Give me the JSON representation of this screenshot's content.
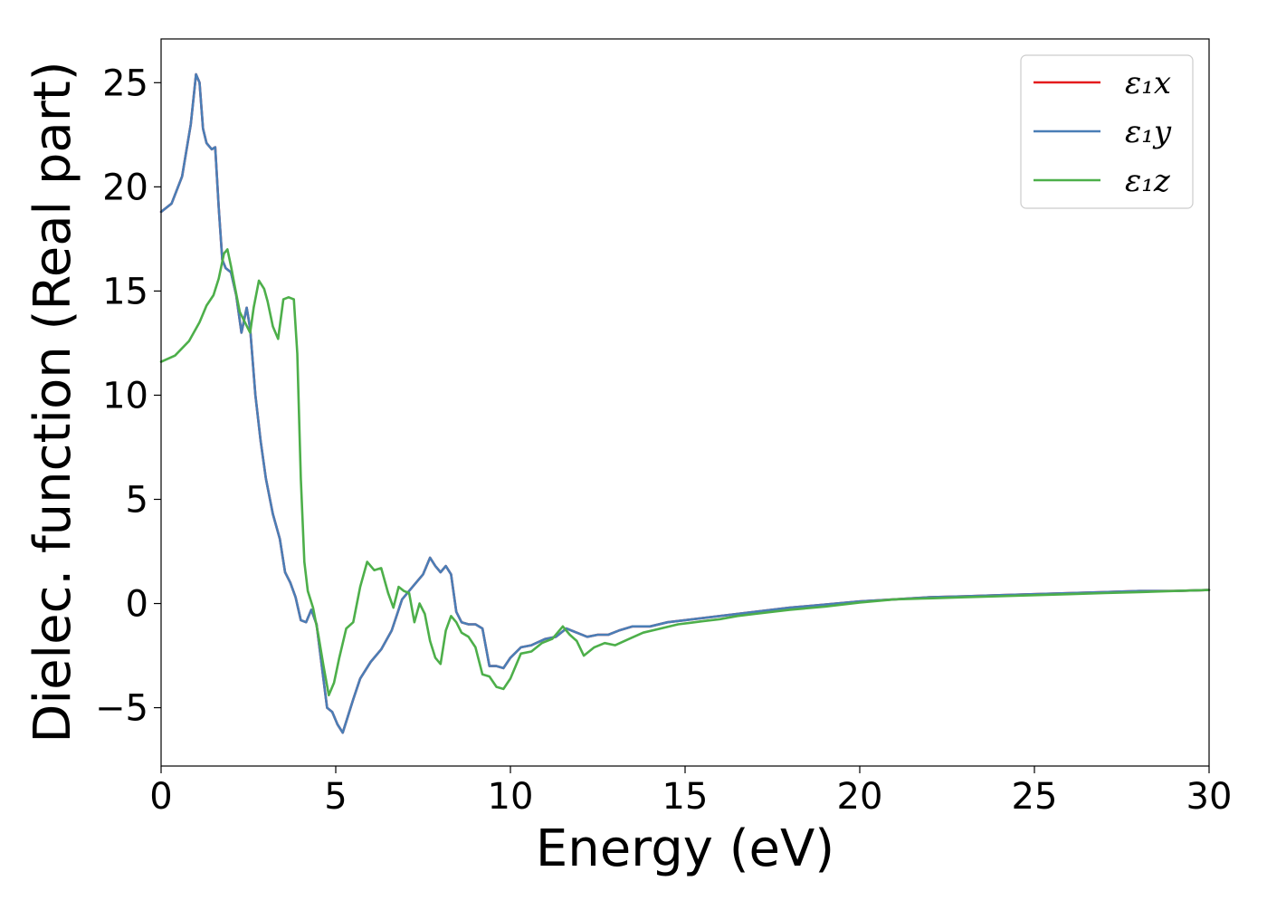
{
  "chart_data": {
    "type": "line",
    "title": "",
    "xlabel": "Energy (eV)",
    "ylabel": "Dielec. function (Real part)",
    "xlim": [
      0,
      30
    ],
    "ylim": [
      -7.8,
      27.1
    ],
    "xticks": [
      0,
      5,
      10,
      15,
      20,
      25,
      30
    ],
    "yticks": [
      -5,
      0,
      5,
      10,
      15,
      20,
      25
    ],
    "xtick_labels": [
      "0",
      "5",
      "10",
      "15",
      "20",
      "25",
      "30"
    ],
    "ytick_labels": [
      "−5",
      "0",
      "5",
      "10",
      "15",
      "20",
      "25"
    ],
    "grid": false,
    "legend_position": "top-right",
    "series": [
      {
        "name": "ε₁x",
        "color": "#e41a1c",
        "x": [
          0,
          0.3,
          0.6,
          0.85,
          1.0,
          1.1,
          1.2,
          1.3,
          1.45,
          1.55,
          1.65,
          1.75,
          1.85,
          2.0,
          2.15,
          2.3,
          2.45,
          2.55,
          2.7,
          2.85,
          3.0,
          3.2,
          3.4,
          3.55,
          3.7,
          3.85,
          4.0,
          4.15,
          4.3,
          4.45,
          4.6,
          4.75,
          4.9,
          5.05,
          5.2,
          5.35,
          5.5,
          5.7,
          6.0,
          6.3,
          6.6,
          6.9,
          7.2,
          7.5,
          7.7,
          7.85,
          8.0,
          8.15,
          8.3,
          8.45,
          8.6,
          8.8,
          9.0,
          9.2,
          9.4,
          9.6,
          9.8,
          10.0,
          10.3,
          10.6,
          11.0,
          11.3,
          11.6,
          11.9,
          12.2,
          12.5,
          12.8,
          13.1,
          13.5,
          14.0,
          14.5,
          15.0,
          16.0,
          17.0,
          18.0,
          19.0,
          20.0,
          21.0,
          22.0,
          23.0,
          24.0,
          25.0,
          26.0,
          27.0,
          28.0,
          29.0,
          30.0
        ],
        "values": [
          18.8,
          19.2,
          20.5,
          23.0,
          25.4,
          25.0,
          22.8,
          22.1,
          21.8,
          21.9,
          19.0,
          16.5,
          16.1,
          15.9,
          14.8,
          13.0,
          14.2,
          13.2,
          10.0,
          7.8,
          6.0,
          4.3,
          3.1,
          1.5,
          1.0,
          0.3,
          -0.8,
          -0.9,
          -0.3,
          -1.0,
          -3.0,
          -5.0,
          -5.2,
          -5.8,
          -6.2,
          -5.4,
          -4.6,
          -3.6,
          -2.8,
          -2.2,
          -1.3,
          0.2,
          0.8,
          1.4,
          2.2,
          1.8,
          1.5,
          1.8,
          1.4,
          -0.4,
          -0.9,
          -1.0,
          -1.0,
          -1.2,
          -3.0,
          -3.0,
          -3.1,
          -2.6,
          -2.1,
          -2.0,
          -1.7,
          -1.6,
          -1.2,
          -1.4,
          -1.6,
          -1.5,
          -1.5,
          -1.3,
          -1.1,
          -1.1,
          -0.9,
          -0.8,
          -0.6,
          -0.4,
          -0.2,
          -0.05,
          0.1,
          0.2,
          0.3,
          0.35,
          0.4,
          0.45,
          0.5,
          0.55,
          0.6,
          0.6,
          0.65
        ]
      },
      {
        "name": "ε₁y",
        "color": "#4a7eb6",
        "x": [
          0,
          0.3,
          0.6,
          0.85,
          1.0,
          1.1,
          1.2,
          1.3,
          1.45,
          1.55,
          1.65,
          1.75,
          1.85,
          2.0,
          2.15,
          2.3,
          2.45,
          2.55,
          2.7,
          2.85,
          3.0,
          3.2,
          3.4,
          3.55,
          3.7,
          3.85,
          4.0,
          4.15,
          4.3,
          4.45,
          4.6,
          4.75,
          4.9,
          5.05,
          5.2,
          5.35,
          5.5,
          5.7,
          6.0,
          6.3,
          6.6,
          6.9,
          7.2,
          7.5,
          7.7,
          7.85,
          8.0,
          8.15,
          8.3,
          8.45,
          8.6,
          8.8,
          9.0,
          9.2,
          9.4,
          9.6,
          9.8,
          10.0,
          10.3,
          10.6,
          11.0,
          11.3,
          11.6,
          11.9,
          12.2,
          12.5,
          12.8,
          13.1,
          13.5,
          14.0,
          14.5,
          15.0,
          16.0,
          17.0,
          18.0,
          19.0,
          20.0,
          21.0,
          22.0,
          23.0,
          24.0,
          25.0,
          26.0,
          27.0,
          28.0,
          29.0,
          30.0
        ],
        "values": [
          18.8,
          19.2,
          20.5,
          23.0,
          25.4,
          25.0,
          22.8,
          22.1,
          21.8,
          21.9,
          19.0,
          16.5,
          16.1,
          15.9,
          14.8,
          13.0,
          14.2,
          13.2,
          10.0,
          7.8,
          6.0,
          4.3,
          3.1,
          1.5,
          1.0,
          0.3,
          -0.8,
          -0.9,
          -0.3,
          -1.0,
          -3.0,
          -5.0,
          -5.2,
          -5.8,
          -6.2,
          -5.4,
          -4.6,
          -3.6,
          -2.8,
          -2.2,
          -1.3,
          0.2,
          0.8,
          1.4,
          2.2,
          1.8,
          1.5,
          1.8,
          1.4,
          -0.4,
          -0.9,
          -1.0,
          -1.0,
          -1.2,
          -3.0,
          -3.0,
          -3.1,
          -2.6,
          -2.1,
          -2.0,
          -1.7,
          -1.6,
          -1.2,
          -1.4,
          -1.6,
          -1.5,
          -1.5,
          -1.3,
          -1.1,
          -1.1,
          -0.9,
          -0.8,
          -0.6,
          -0.4,
          -0.2,
          -0.05,
          0.1,
          0.2,
          0.3,
          0.35,
          0.4,
          0.45,
          0.5,
          0.55,
          0.6,
          0.6,
          0.65
        ]
      },
      {
        "name": "ε₁z",
        "color": "#4daf4a",
        "x": [
          0,
          0.4,
          0.8,
          1.1,
          1.3,
          1.5,
          1.65,
          1.8,
          1.9,
          2.0,
          2.1,
          2.25,
          2.4,
          2.55,
          2.65,
          2.8,
          2.95,
          3.05,
          3.2,
          3.35,
          3.5,
          3.65,
          3.8,
          3.9,
          4.0,
          4.1,
          4.2,
          4.35,
          4.5,
          4.65,
          4.8,
          4.95,
          5.1,
          5.3,
          5.5,
          5.7,
          5.9,
          6.1,
          6.3,
          6.5,
          6.65,
          6.8,
          6.95,
          7.1,
          7.25,
          7.4,
          7.55,
          7.7,
          7.85,
          8.0,
          8.15,
          8.3,
          8.45,
          8.6,
          8.8,
          9.0,
          9.2,
          9.4,
          9.6,
          9.8,
          10.0,
          10.3,
          10.6,
          10.9,
          11.2,
          11.5,
          11.7,
          11.9,
          12.1,
          12.4,
          12.7,
          13.0,
          13.4,
          13.8,
          14.3,
          14.8,
          15.5,
          16.0,
          16.5,
          17.0,
          17.5,
          18.0,
          19.0,
          20.0,
          21.0,
          22.0,
          23.0,
          24.0,
          25.0,
          26.0,
          27.0,
          28.0,
          29.0,
          30.0
        ],
        "values": [
          11.6,
          11.9,
          12.6,
          13.5,
          14.3,
          14.8,
          15.6,
          16.8,
          17.0,
          16.2,
          15.3,
          14.0,
          13.5,
          13.0,
          14.2,
          15.5,
          15.1,
          14.5,
          13.3,
          12.7,
          14.6,
          14.7,
          14.6,
          12.0,
          6.0,
          2.0,
          0.6,
          -0.2,
          -1.5,
          -3.0,
          -4.4,
          -3.8,
          -2.6,
          -1.2,
          -0.9,
          0.8,
          2.0,
          1.6,
          1.7,
          0.5,
          -0.2,
          0.8,
          0.6,
          0.5,
          -0.9,
          0.0,
          -0.5,
          -1.8,
          -2.6,
          -2.9,
          -1.3,
          -0.6,
          -0.9,
          -1.4,
          -1.6,
          -2.1,
          -3.4,
          -3.5,
          -4.0,
          -4.1,
          -3.6,
          -2.4,
          -2.3,
          -1.9,
          -1.7,
          -1.1,
          -1.5,
          -1.8,
          -2.5,
          -2.1,
          -1.9,
          -2.0,
          -1.7,
          -1.4,
          -1.2,
          -1.0,
          -0.85,
          -0.75,
          -0.6,
          -0.5,
          -0.4,
          -0.3,
          -0.15,
          0.05,
          0.2,
          0.25,
          0.3,
          0.35,
          0.4,
          0.45,
          0.5,
          0.55,
          0.6,
          0.65
        ]
      }
    ]
  }
}
